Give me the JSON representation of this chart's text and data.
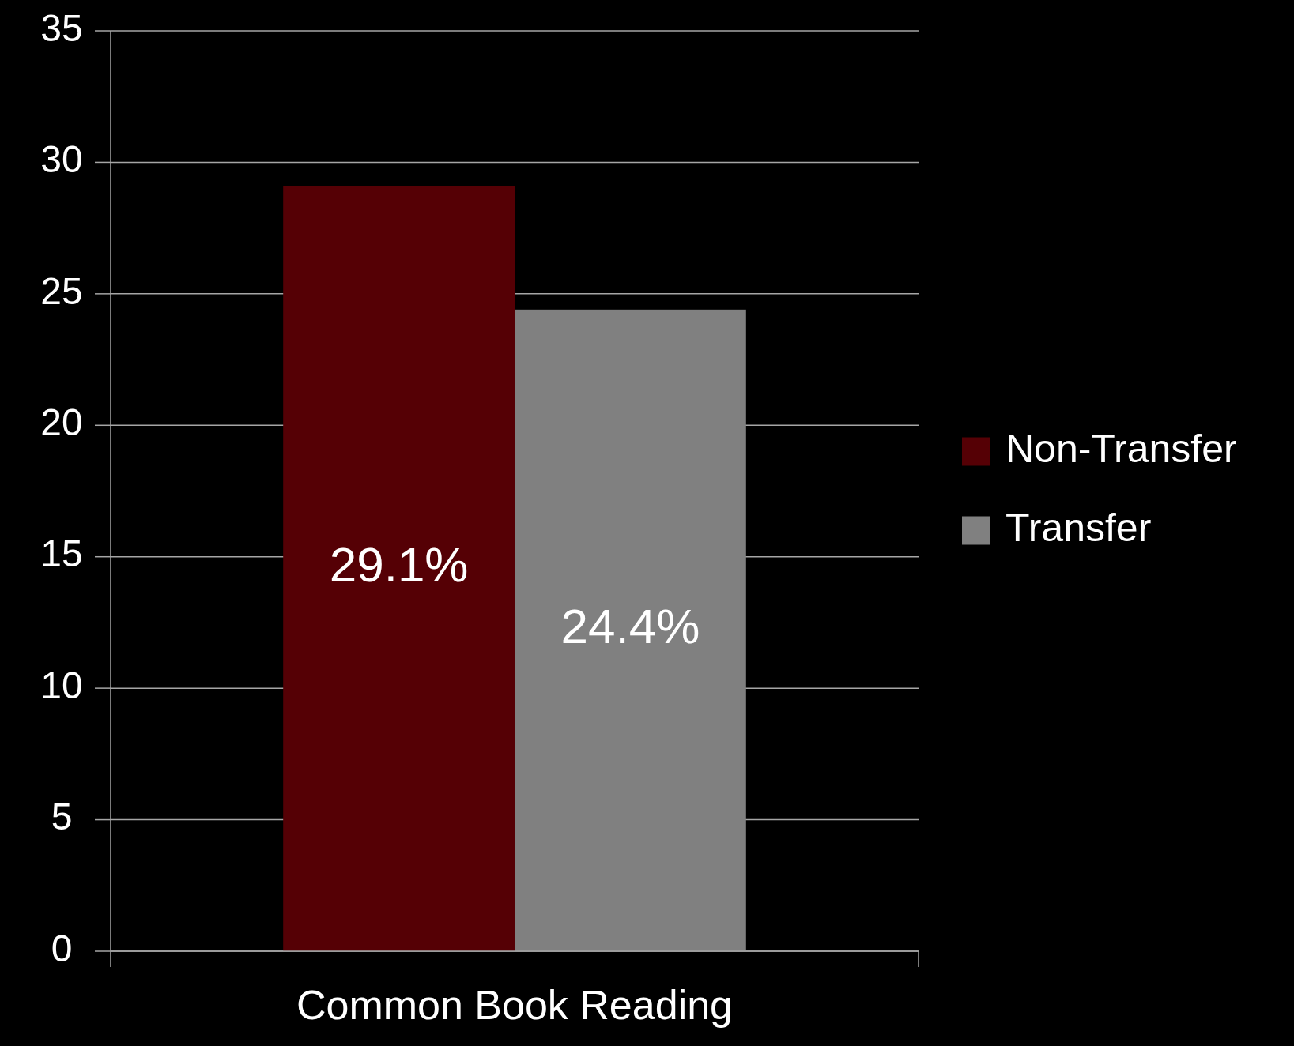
{
  "chart_data": {
    "type": "bar",
    "categories": [
      "Common Book Reading"
    ],
    "series": [
      {
        "name": "Non-Transfer",
        "color": "#550005",
        "values": [
          29.1
        ],
        "value_labels": [
          "29.1%"
        ]
      },
      {
        "name": "Transfer",
        "color": "#808080",
        "values": [
          24.4
        ],
        "value_labels": [
          "24.4%"
        ]
      }
    ],
    "ylim": [
      0,
      35
    ],
    "yticks": [
      0,
      5,
      10,
      15,
      20,
      25,
      30,
      35
    ],
    "grid": "y",
    "legend": "right"
  }
}
